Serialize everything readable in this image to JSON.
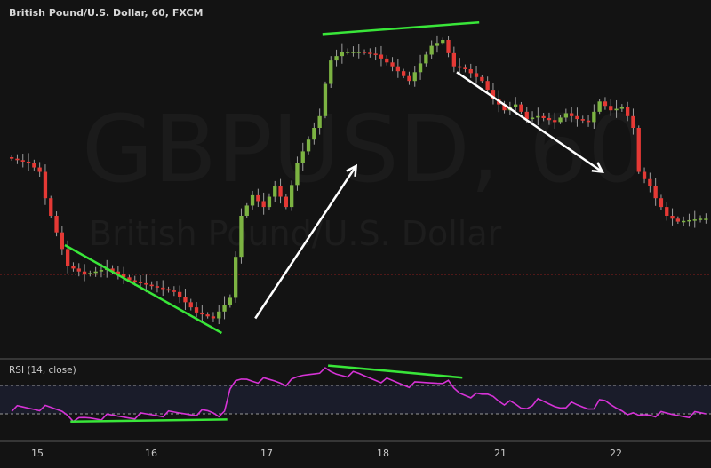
{
  "chart_data": [
    {
      "type": "candlestick",
      "title": "British Pound/U.S. Dollar, 60, FXCM",
      "watermark": {
        "symbol": "GBPUSD, 60",
        "name": "British Pound/U.S. Dollar"
      },
      "x_ticks": [
        "15",
        "16",
        "17",
        "18",
        "21",
        "22"
      ],
      "ylim": [
        0,
        100
      ],
      "note": "price scale not shown; values are relative (0 = low, 100 = high of visible range)",
      "colors": {
        "up": "#7cb342",
        "down": "#e53935",
        "wick": "#9e9e9e",
        "reference_line": "#8b1c1c",
        "trend_line": "#39e639",
        "arrow": "#ffffff"
      },
      "reference_line_value": 20,
      "close_path": [
        [
          0,
          60
        ],
        [
          4,
          58
        ],
        [
          6,
          55
        ],
        [
          7,
          46
        ],
        [
          8,
          40
        ],
        [
          11,
          23
        ],
        [
          14,
          20
        ],
        [
          18,
          22
        ],
        [
          22,
          18
        ],
        [
          26,
          16
        ],
        [
          30,
          14
        ],
        [
          34,
          7
        ],
        [
          37,
          5
        ],
        [
          40,
          12
        ],
        [
          42,
          40
        ],
        [
          44,
          47
        ],
        [
          46,
          43
        ],
        [
          48,
          50
        ],
        [
          50,
          43
        ],
        [
          52,
          58
        ],
        [
          54,
          66
        ],
        [
          56,
          74
        ],
        [
          57,
          85
        ],
        [
          58,
          93
        ],
        [
          60,
          96
        ],
        [
          63,
          96
        ],
        [
          66,
          95
        ],
        [
          69,
          91
        ],
        [
          72,
          86
        ],
        [
          74,
          92
        ],
        [
          76,
          98
        ],
        [
          78,
          100
        ],
        [
          80,
          91
        ],
        [
          82,
          90
        ],
        [
          85,
          86
        ],
        [
          87,
          80
        ],
        [
          89,
          76
        ],
        [
          91,
          78
        ],
        [
          93,
          73
        ],
        [
          95,
          74
        ],
        [
          98,
          72
        ],
        [
          100,
          75
        ],
        [
          102,
          73
        ],
        [
          104,
          72
        ],
        [
          106,
          79
        ],
        [
          108,
          76
        ],
        [
          110,
          77
        ],
        [
          111,
          74
        ],
        [
          112,
          70
        ],
        [
          113,
          55
        ],
        [
          115,
          50
        ],
        [
          116,
          46
        ],
        [
          118,
          40
        ],
        [
          120,
          38
        ],
        [
          124,
          39
        ]
      ],
      "trend_lines": [
        {
          "from": [
            10,
            30
          ],
          "to": [
            38,
            0
          ]
        },
        {
          "from": [
            56,
            102
          ],
          "to": [
            84,
            106
          ]
        }
      ],
      "arrows": [
        {
          "from": [
            44,
            5
          ],
          "to": [
            62,
            57
          ]
        },
        {
          "from": [
            80,
            89
          ],
          "to": [
            106,
            55
          ]
        }
      ]
    },
    {
      "type": "line",
      "title": "RSI (14, close)",
      "ylim": [
        0,
        100
      ],
      "levels": [
        70,
        30
      ],
      "colors": {
        "line": "#d633d6",
        "band": "#1a1c2a",
        "level": "#9a9a9a",
        "trend_line": "#39e639"
      },
      "values_path": [
        [
          0,
          38
        ],
        [
          6,
          38
        ],
        [
          10,
          34
        ],
        [
          12,
          20
        ],
        [
          14,
          24
        ],
        [
          20,
          26
        ],
        [
          26,
          29
        ],
        [
          30,
          30
        ],
        [
          36,
          33
        ],
        [
          38,
          26
        ],
        [
          40,
          72
        ],
        [
          42,
          80
        ],
        [
          44,
          78
        ],
        [
          48,
          76
        ],
        [
          50,
          72
        ],
        [
          52,
          82
        ],
        [
          56,
          93
        ],
        [
          58,
          86
        ],
        [
          62,
          85
        ],
        [
          66,
          79
        ],
        [
          70,
          73
        ],
        [
          72,
          70
        ],
        [
          76,
          75
        ],
        [
          78,
          78
        ],
        [
          80,
          60
        ],
        [
          84,
          54
        ],
        [
          86,
          58
        ],
        [
          88,
          48
        ],
        [
          90,
          44
        ],
        [
          92,
          36
        ],
        [
          94,
          48
        ],
        [
          96,
          44
        ],
        [
          98,
          40
        ],
        [
          100,
          44
        ],
        [
          102,
          40
        ],
        [
          104,
          38
        ],
        [
          106,
          48
        ],
        [
          108,
          40
        ],
        [
          110,
          36
        ],
        [
          112,
          25
        ],
        [
          114,
          30
        ],
        [
          118,
          28
        ],
        [
          124,
          30
        ]
      ],
      "trend_lines": [
        {
          "from": [
            11,
            19
          ],
          "to": [
            39,
            22
          ]
        },
        {
          "from": [
            57,
            98
          ],
          "to": [
            81,
            81
          ]
        }
      ]
    }
  ]
}
